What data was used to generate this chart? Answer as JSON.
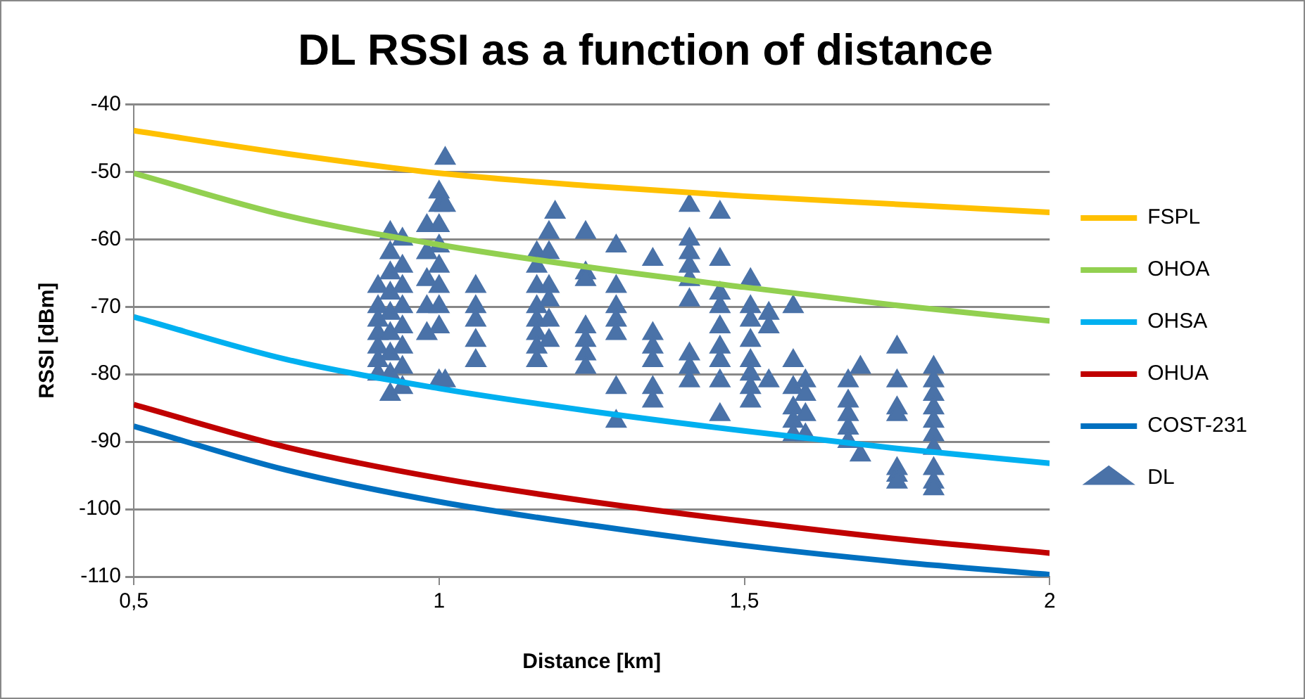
{
  "chart_data": {
    "type": "line",
    "title": "DL RSSI as a function of distance",
    "xlabel": "Distance [km]",
    "ylabel": "RSSI [dBm]",
    "xlim": [
      0.5,
      2
    ],
    "xticks": [
      {
        "value": 0.5,
        "label": "0,5"
      },
      1,
      {
        "value": 1.5,
        "label": "1,5"
      },
      2
    ],
    "ylim": [
      -110,
      -40
    ],
    "yticks": [
      -110,
      -100,
      -90,
      -80,
      -70,
      -60,
      -50,
      -40
    ],
    "grid": "y",
    "legend": "right",
    "line_style": "solid",
    "series": [
      {
        "name": "FSPL",
        "color": "#ffc000",
        "marker": "none",
        "x": [
          0.5,
          0.75,
          1,
          1.25,
          1.5,
          1.75,
          2
        ],
        "values": [
          -43.9,
          -47.3,
          -50.2,
          -52.1,
          -53.6,
          -54.8,
          -56
        ]
      },
      {
        "name": "OHOA",
        "color": "#92d050",
        "marker": "none",
        "x": [
          0.5,
          0.75,
          1,
          1.25,
          1.5,
          1.75,
          2
        ],
        "values": [
          -50.2,
          -56.5,
          -60.8,
          -64.2,
          -67.1,
          -69.8,
          -72.1
        ]
      },
      {
        "name": "OHSA",
        "color": "#00b0f0",
        "marker": "none",
        "x": [
          0.5,
          0.75,
          1,
          1.25,
          1.5,
          1.75,
          2
        ],
        "values": [
          -71.5,
          -77.8,
          -82.1,
          -85.5,
          -88.4,
          -91,
          -93.2
        ]
      },
      {
        "name": "OHUA",
        "color": "#c00000",
        "marker": "none",
        "x": [
          0.5,
          0.75,
          1,
          1.25,
          1.5,
          1.75,
          2
        ],
        "values": [
          -84.5,
          -90.8,
          -95.4,
          -98.9,
          -101.8,
          -104.4,
          -106.5
        ]
      },
      {
        "name": "COST-231",
        "color": "#0070c0",
        "marker": "none",
        "x": [
          0.5,
          0.75,
          1,
          1.25,
          1.5,
          1.75,
          2
        ],
        "values": [
          -87.7,
          -94.2,
          -98.9,
          -102.4,
          -105.4,
          -107.8,
          -109.7
        ]
      },
      {
        "name": "DL",
        "type": "scatter",
        "color": "#4a72a8",
        "marker": "triangle",
        "x": [
          0.9,
          0.9,
          0.9,
          0.9,
          0.9,
          0.9,
          0.9,
          0.92,
          0.92,
          0.92,
          0.92,
          0.92,
          0.92,
          0.92,
          0.92,
          0.92,
          0.94,
          0.94,
          0.94,
          0.94,
          0.94,
          0.94,
          0.94,
          0.94,
          0.98,
          0.98,
          0.98,
          0.98,
          0.98,
          1,
          1,
          1,
          1,
          1,
          1,
          1,
          1,
          1,
          1.01,
          1.01,
          1.01,
          1.06,
          1.06,
          1.06,
          1.06,
          1.06,
          1.16,
          1.16,
          1.16,
          1.16,
          1.16,
          1.16,
          1.16,
          1.16,
          1.18,
          1.18,
          1.18,
          1.18,
          1.18,
          1.18,
          1.19,
          1.24,
          1.24,
          1.24,
          1.24,
          1.24,
          1.24,
          1.24,
          1.29,
          1.29,
          1.29,
          1.29,
          1.29,
          1.29,
          1.29,
          1.35,
          1.35,
          1.35,
          1.35,
          1.35,
          1.35,
          1.41,
          1.41,
          1.41,
          1.41,
          1.41,
          1.41,
          1.41,
          1.41,
          1.41,
          1.46,
          1.46,
          1.46,
          1.46,
          1.46,
          1.46,
          1.46,
          1.46,
          1.46,
          1.51,
          1.51,
          1.51,
          1.51,
          1.51,
          1.51,
          1.51,
          1.51,
          1.54,
          1.54,
          1.54,
          1.58,
          1.58,
          1.58,
          1.58,
          1.58,
          1.58,
          1.6,
          1.6,
          1.6,
          1.6,
          1.67,
          1.67,
          1.67,
          1.67,
          1.67,
          1.69,
          1.69,
          1.75,
          1.75,
          1.75,
          1.75,
          1.75,
          1.75,
          1.75,
          1.81,
          1.81,
          1.81,
          1.81,
          1.81,
          1.81,
          1.81,
          1.81,
          1.81,
          1.81
        ],
        "values": [
          -67,
          -70,
          -72,
          -74,
          -76,
          -78,
          -80,
          -59,
          -62,
          -65,
          -68,
          -71,
          -74,
          -77,
          -80,
          -83,
          -60,
          -64,
          -67,
          -70,
          -73,
          -76,
          -79,
          -82,
          -58,
          -62,
          -66,
          -70,
          -74,
          -53,
          -55,
          -58,
          -61,
          -64,
          -67,
          -70,
          -73,
          -81,
          -48,
          -55,
          -81,
          -67,
          -70,
          -72,
          -75,
          -78,
          -62,
          -64,
          -67,
          -70,
          -72,
          -74,
          -76,
          -78,
          -59,
          -62,
          -67,
          -69,
          -72,
          -75,
          -56,
          -59,
          -65,
          -66,
          -73,
          -75,
          -77,
          -79,
          -61,
          -67,
          -70,
          -72,
          -74,
          -82,
          -87,
          -63,
          -74,
          -76,
          -78,
          -82,
          -84,
          -55,
          -60,
          -62,
          -64,
          -66,
          -69,
          -77,
          -79,
          -81,
          -56,
          -63,
          -68,
          -70,
          -73,
          -76,
          -78,
          -81,
          -86,
          -66,
          -70,
          -72,
          -75,
          -78,
          -80,
          -82,
          -84,
          -71,
          -73,
          -81,
          -70,
          -78,
          -82,
          -85,
          -87,
          -89,
          -81,
          -83,
          -86,
          -89,
          -81,
          -84,
          -86,
          -88,
          -90,
          -79,
          -92,
          -76,
          -81,
          -85,
          -86,
          -94,
          -95,
          -96,
          -79,
          -81,
          -83,
          -85,
          -87,
          -89,
          -91,
          -94,
          -96,
          -97
        ]
      }
    ]
  }
}
